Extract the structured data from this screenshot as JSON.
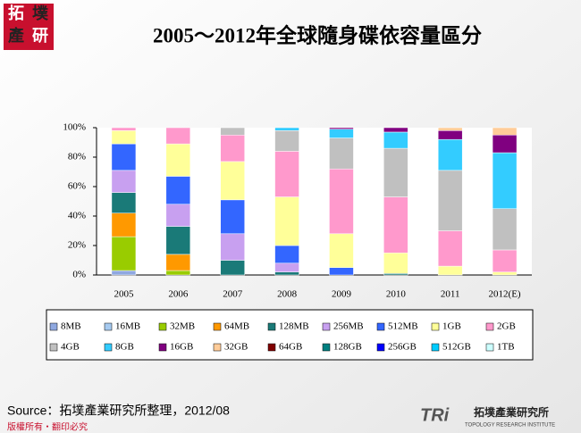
{
  "logo": {
    "top": [
      "拓",
      "墣"
    ],
    "bottom": [
      "產",
      "研"
    ]
  },
  "chart_data": {
    "type": "stacked_bar",
    "title": "2005～2012年全球隨身碟依容量區分",
    "categories": [
      "2005",
      "2006",
      "2007",
      "2008",
      "2009",
      "2010",
      "2011",
      "2012(E)"
    ],
    "ylim": [
      0,
      100
    ],
    "yticks": [
      {
        "value": 0,
        "label": "0%"
      },
      {
        "value": 20,
        "label": "20%"
      },
      {
        "value": 40,
        "label": "40%"
      },
      {
        "value": 60,
        "label": "60%"
      },
      {
        "value": 80,
        "label": "80%"
      },
      {
        "value": 100,
        "label": "100%"
      }
    ],
    "grid": false,
    "legend": "bottom",
    "series": [
      {
        "name": "8MB",
        "color": "#8fa8e0",
        "values": [
          3,
          0,
          0,
          0,
          0,
          0,
          0,
          0
        ]
      },
      {
        "name": "16MB",
        "color": "#a6caf0",
        "values": [
          0,
          0,
          0,
          0,
          0,
          0,
          0,
          0
        ]
      },
      {
        "name": "32MB",
        "color": "#99cc00",
        "values": [
          23,
          3,
          0,
          0,
          0,
          0,
          0,
          0
        ]
      },
      {
        "name": "64MB",
        "color": "#ff9900",
        "values": [
          16,
          11,
          0,
          0,
          0,
          0,
          0,
          0
        ]
      },
      {
        "name": "128MB",
        "color": "#1a7a78",
        "values": [
          14,
          19,
          10,
          2,
          0,
          1,
          0,
          0
        ]
      },
      {
        "name": "256MB",
        "color": "#c8a0f0",
        "values": [
          15,
          15,
          18,
          6,
          0,
          0,
          0,
          0
        ]
      },
      {
        "name": "512MB",
        "color": "#3366ff",
        "values": [
          18,
          19,
          23,
          12,
          5,
          0,
          0,
          0
        ]
      },
      {
        "name": "1GB",
        "color": "#ffff99",
        "values": [
          9,
          22,
          26,
          33,
          23,
          14,
          6,
          2
        ]
      },
      {
        "name": "2GB",
        "color": "#ff99cc",
        "values": [
          2,
          11,
          18,
          31,
          44,
          38,
          24,
          15
        ]
      },
      {
        "name": "4GB",
        "color": "#c0c0c0",
        "values": [
          0,
          0,
          5,
          14,
          21,
          33,
          41,
          28
        ]
      },
      {
        "name": "8GB",
        "color": "#33ccff",
        "values": [
          0,
          0,
          0,
          2,
          6,
          11,
          21,
          38
        ]
      },
      {
        "name": "16GB",
        "color": "#800080",
        "values": [
          0,
          0,
          0,
          0,
          1,
          3,
          6,
          12
        ]
      },
      {
        "name": "32GB",
        "color": "#ffcc99",
        "values": [
          0,
          0,
          0,
          0,
          0,
          0,
          2,
          5
        ]
      },
      {
        "name": "64GB",
        "color": "#800000",
        "values": [
          0,
          0,
          0,
          0,
          0,
          0,
          0,
          0
        ]
      },
      {
        "name": "128GB",
        "color": "#008080",
        "values": [
          0,
          0,
          0,
          0,
          0,
          0,
          0,
          0
        ]
      },
      {
        "name": "256GB",
        "color": "#0000ff",
        "values": [
          0,
          0,
          0,
          0,
          0,
          0,
          0,
          0
        ]
      },
      {
        "name": "512GB",
        "color": "#00ccff",
        "values": [
          0,
          0,
          0,
          0,
          0,
          0,
          0,
          0
        ]
      },
      {
        "name": "1TB",
        "color": "#ccffff",
        "values": [
          0,
          0,
          0,
          0,
          0,
          0,
          0,
          0
        ]
      }
    ]
  },
  "source": "Source：拓墣產業研究所整理，2012/08",
  "footer": "版權所有・翻印必究",
  "brand": {
    "mark": "TRi",
    "name": "拓墣產業研究所",
    "english": "TOPOLOGY RESEARCH INSTITUTE"
  }
}
